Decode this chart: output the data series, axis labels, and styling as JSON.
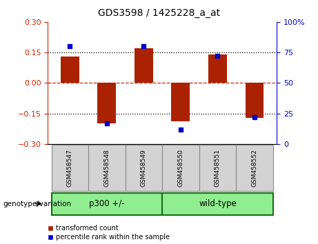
{
  "title": "GDS3598 / 1425228_a_at",
  "categories": [
    "GSM458547",
    "GSM458548",
    "GSM458549",
    "GSM458550",
    "GSM458551",
    "GSM458552"
  ],
  "red_values": [
    0.13,
    -0.2,
    0.17,
    -0.19,
    0.14,
    -0.17
  ],
  "blue_values": [
    80,
    17,
    80,
    12,
    72,
    22
  ],
  "ylim_left": [
    -0.3,
    0.3
  ],
  "ylim_right": [
    0,
    100
  ],
  "yticks_left": [
    -0.3,
    -0.15,
    0,
    0.15,
    0.3
  ],
  "yticks_right": [
    0,
    25,
    50,
    75,
    100
  ],
  "hlines_dotted": [
    -0.15,
    0.15
  ],
  "hline_dashed": 0,
  "bar_color": "#aa2200",
  "marker_color": "#0000cc",
  "bar_width": 0.5,
  "group1_label": "p300 +/-",
  "group2_label": "wild-type",
  "group_color": "#90ee90",
  "group_edge_color": "#228B22",
  "genotype_label": "genotype/variation",
  "legend_red": "transformed count",
  "legend_blue": "percentile rank within the sample",
  "sample_box_color": "#d3d3d3",
  "sample_box_edge": "#888888",
  "left_axis_color": "#cc2200",
  "right_axis_color": "#0000cc"
}
